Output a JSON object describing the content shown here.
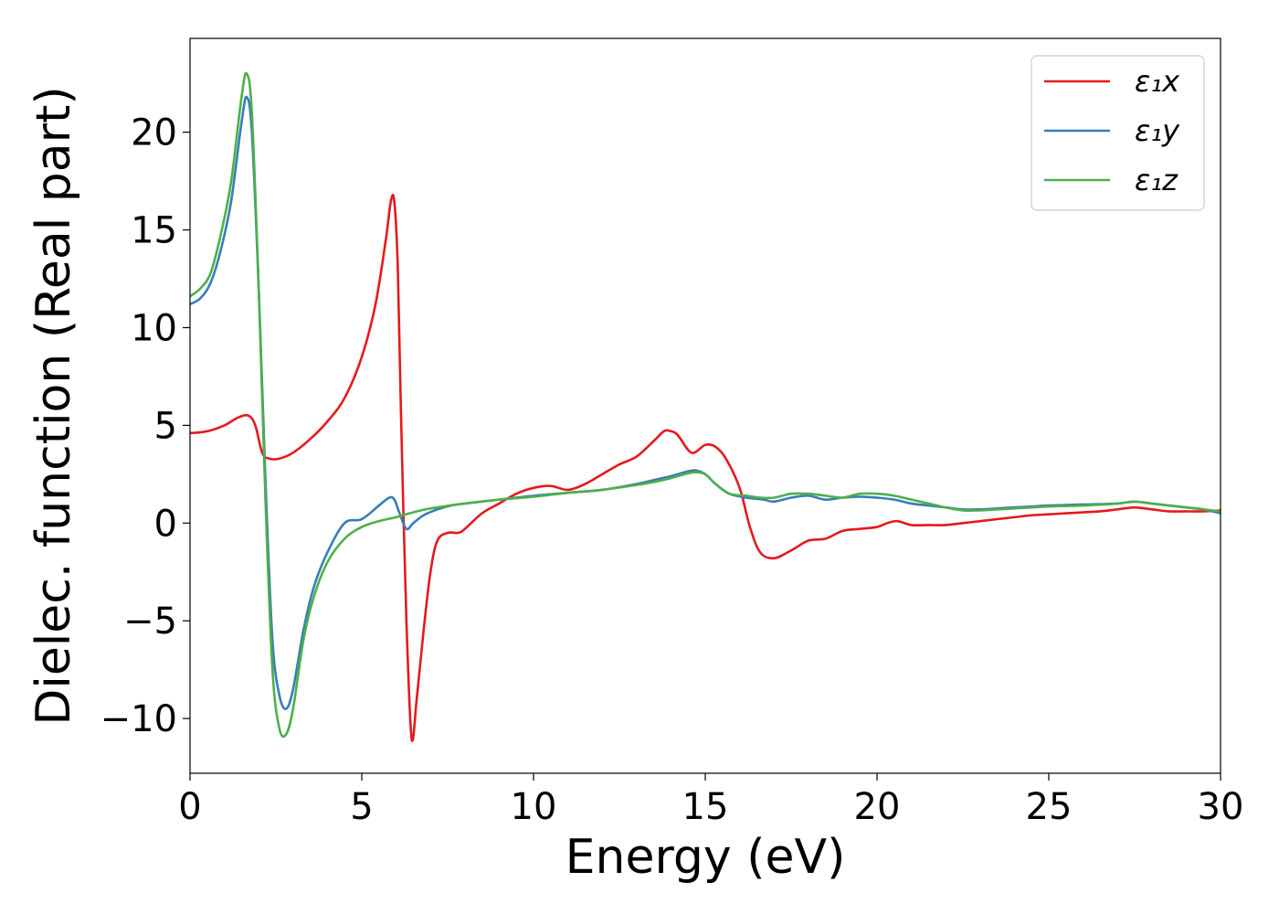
{
  "chart_data": {
    "type": "line",
    "xlabel": "Energy (eV)",
    "ylabel": "Dielec. function (Real part)",
    "xlim": [
      0,
      30
    ],
    "ylim": [
      -12.8,
      24.8
    ],
    "xticks": [
      0,
      5,
      10,
      15,
      20,
      25,
      30
    ],
    "yticks": [
      -10,
      -5,
      0,
      5,
      10,
      15,
      20
    ],
    "xtick_labels": [
      "0",
      "5",
      "10",
      "15",
      "20",
      "25",
      "30"
    ],
    "ytick_labels": [
      "−10",
      "−5",
      "0",
      "5",
      "10",
      "15",
      "20"
    ],
    "grid": false,
    "legend_position": "top-right",
    "series": [
      {
        "name": "ε₁x",
        "color": "#e41a1c",
        "x": [
          0,
          0.5,
          1.0,
          1.4,
          1.7,
          1.9,
          2.1,
          2.3,
          2.6,
          3.0,
          3.5,
          4.0,
          4.5,
          5.0,
          5.4,
          5.7,
          5.85,
          5.95,
          6.05,
          6.15,
          6.3,
          6.45,
          6.6,
          6.8,
          7.0,
          7.2,
          7.5,
          7.8,
          8.0,
          8.5,
          9.0,
          9.5,
          10.0,
          10.5,
          11.0,
          11.5,
          12.0,
          12.5,
          13.0,
          13.5,
          13.8,
          14.0,
          14.2,
          14.6,
          15.0,
          15.3,
          15.6,
          16.0,
          16.3,
          16.6,
          17.0,
          17.5,
          18.0,
          18.5,
          19.0,
          19.5,
          20.0,
          20.3,
          20.6,
          21.0,
          21.5,
          22.0,
          22.5,
          23.0,
          23.5,
          24.0,
          24.5,
          25.0,
          25.5,
          26.0,
          26.5,
          27.0,
          27.5,
          28.0,
          28.5,
          29.0,
          29.5,
          30.0
        ],
        "y": [
          4.6,
          4.7,
          5.0,
          5.4,
          5.5,
          5.0,
          3.6,
          3.3,
          3.3,
          3.6,
          4.3,
          5.2,
          6.4,
          8.5,
          11.2,
          14.5,
          16.5,
          16.4,
          13.0,
          5.0,
          -5.0,
          -11.0,
          -9.0,
          -5.5,
          -2.5,
          -0.9,
          -0.5,
          -0.5,
          -0.3,
          0.5,
          1.0,
          1.5,
          1.8,
          1.9,
          1.7,
          2.0,
          2.5,
          3.0,
          3.4,
          4.2,
          4.7,
          4.7,
          4.5,
          3.6,
          4.0,
          3.9,
          3.3,
          1.8,
          -0.2,
          -1.5,
          -1.8,
          -1.4,
          -0.9,
          -0.8,
          -0.4,
          -0.3,
          -0.2,
          0.0,
          0.1,
          -0.1,
          -0.1,
          -0.1,
          0.0,
          0.1,
          0.2,
          0.3,
          0.4,
          0.45,
          0.5,
          0.55,
          0.6,
          0.7,
          0.8,
          0.7,
          0.6,
          0.6,
          0.6,
          0.65
        ]
      },
      {
        "name": "ε₁y",
        "color": "#377eb8",
        "x": [
          0,
          0.3,
          0.6,
          0.9,
          1.2,
          1.5,
          1.65,
          1.8,
          2.0,
          2.2,
          2.4,
          2.6,
          2.8,
          3.0,
          3.3,
          3.6,
          4.0,
          4.5,
          5.0,
          5.5,
          5.8,
          5.95,
          6.1,
          6.3,
          6.5,
          6.8,
          7.2,
          7.6,
          8.0,
          9.0,
          10.0,
          11.0,
          12.0,
          13.0,
          13.5,
          14.0,
          14.4,
          14.7,
          15.0,
          15.3,
          15.7,
          16.2,
          16.7,
          17.0,
          17.5,
          18.0,
          18.5,
          19.0,
          19.5,
          20.0,
          20.5,
          21.0,
          21.5,
          22.0,
          22.5,
          23.0,
          23.5,
          24.0,
          24.5,
          25.0,
          26.0,
          27.0,
          27.5,
          28.0,
          28.5,
          29.0,
          29.5,
          30.0
        ],
        "y": [
          11.2,
          11.5,
          12.3,
          14.0,
          16.5,
          20.5,
          21.8,
          20.0,
          12.0,
          2.0,
          -6.0,
          -8.8,
          -9.5,
          -8.5,
          -5.5,
          -3.3,
          -1.5,
          0.0,
          0.2,
          0.9,
          1.3,
          1.2,
          0.5,
          -0.3,
          0.0,
          0.4,
          0.7,
          0.9,
          1.0,
          1.2,
          1.4,
          1.55,
          1.7,
          2.0,
          2.2,
          2.4,
          2.6,
          2.7,
          2.5,
          2.0,
          1.5,
          1.3,
          1.2,
          1.1,
          1.3,
          1.4,
          1.2,
          1.3,
          1.35,
          1.3,
          1.2,
          1.0,
          0.9,
          0.8,
          0.7,
          0.7,
          0.75,
          0.8,
          0.85,
          0.9,
          0.95,
          1.0,
          1.1,
          1.0,
          0.9,
          0.8,
          0.7,
          0.5
        ]
      },
      {
        "name": "ε₁z",
        "color": "#4daf4a",
        "x": [
          0,
          0.3,
          0.6,
          0.9,
          1.2,
          1.5,
          1.65,
          1.8,
          2.0,
          2.2,
          2.4,
          2.6,
          2.8,
          3.0,
          3.3,
          3.6,
          4.0,
          4.5,
          5.0,
          5.5,
          6.0,
          6.5,
          7.0,
          8.0,
          9.0,
          10.0,
          11.0,
          12.0,
          13.0,
          13.5,
          14.0,
          14.4,
          14.7,
          15.0,
          15.3,
          15.7,
          16.2,
          16.6,
          17.0,
          17.5,
          18.0,
          18.5,
          19.0,
          19.5,
          20.0,
          20.5,
          21.0,
          21.5,
          22.0,
          22.5,
          23.0,
          23.5,
          24.0,
          24.5,
          25.0,
          26.0,
          27.0,
          27.5,
          28.0,
          28.5,
          29.0,
          29.5,
          30.0
        ],
        "y": [
          11.6,
          12.0,
          12.8,
          14.8,
          17.5,
          21.8,
          23.0,
          21.0,
          12.0,
          1.0,
          -7.5,
          -10.5,
          -10.8,
          -9.5,
          -6.0,
          -3.8,
          -2.0,
          -0.8,
          -0.2,
          0.1,
          0.3,
          0.55,
          0.75,
          1.0,
          1.2,
          1.35,
          1.55,
          1.7,
          1.95,
          2.1,
          2.3,
          2.5,
          2.6,
          2.5,
          2.0,
          1.5,
          1.4,
          1.3,
          1.3,
          1.5,
          1.5,
          1.4,
          1.3,
          1.5,
          1.5,
          1.4,
          1.2,
          1.0,
          0.8,
          0.65,
          0.65,
          0.7,
          0.75,
          0.8,
          0.85,
          0.9,
          1.0,
          1.1,
          1.0,
          0.9,
          0.8,
          0.7,
          0.6
        ]
      }
    ]
  }
}
